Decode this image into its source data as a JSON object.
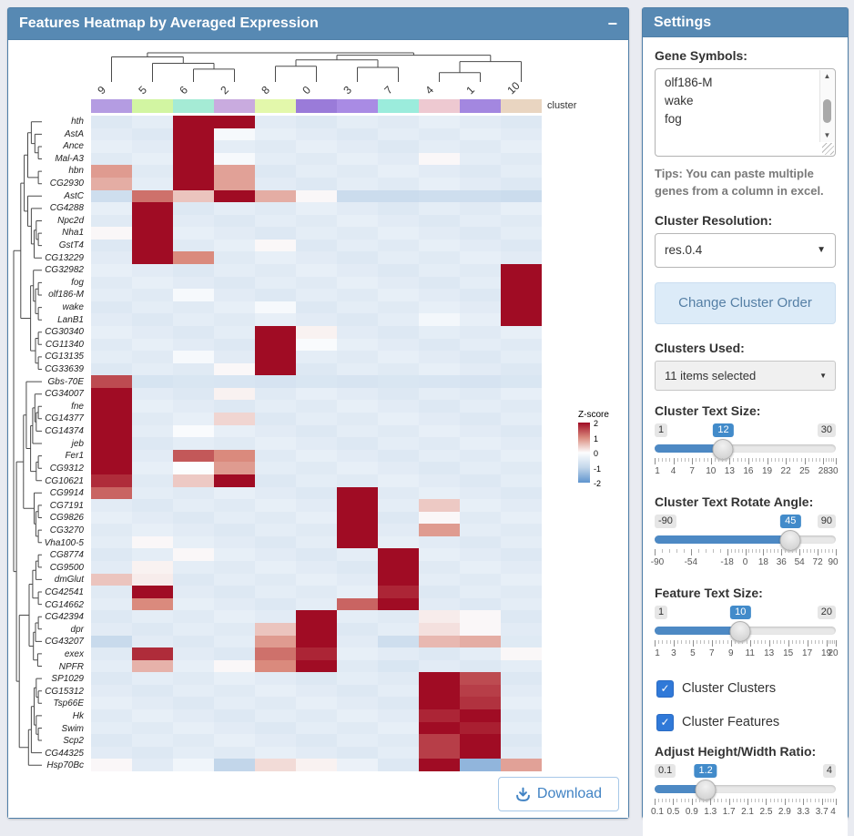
{
  "heatmap_card": {
    "title": "Features Heatmap by Averaged Expression",
    "collapse_icon": "−",
    "annotation_label": "cluster",
    "legend": {
      "title": "Z-score",
      "ticks": [
        "2",
        "1",
        "0",
        "-1",
        "-2"
      ]
    },
    "download_label": "Download"
  },
  "chart_data": {
    "type": "heatmap",
    "title": "Features Heatmap by Averaged Expression",
    "legend_title": "Z-score",
    "zlim": [
      -2,
      2
    ],
    "default_z": -0.45,
    "columns": [
      "9",
      "5",
      "6",
      "2",
      "8",
      "0",
      "3",
      "7",
      "4",
      "1",
      "10"
    ],
    "column_colors": [
      "#b49ce2",
      "#d2f5a2",
      "#a5ebd5",
      "#c9abdf",
      "#e3f8ab",
      "#9a7bd9",
      "#a98be4",
      "#9becdc",
      "#eec9d1",
      "#a387e0",
      "#e9d5c1"
    ],
    "rows": [
      "hth",
      "AstA",
      "Ance",
      "Mal-A3",
      "hbn",
      "CG2930",
      "AstC",
      "CG4288",
      "Npc2d",
      "Nha1",
      "GstT4",
      "CG13229",
      "CG32982",
      "fog",
      "olf186-M",
      "wake",
      "LanB1",
      "CG30340",
      "CG11340",
      "CG13135",
      "CG33639",
      "Gbs-70E",
      "CG34007",
      "fne",
      "CG14377",
      "CG14374",
      "jeb",
      "Fer1",
      "CG9312",
      "CG10621",
      "CG9914",
      "CG7191",
      "CG9826",
      "CG3270",
      "Vha100-5",
      "CG8774",
      "CG9500",
      "dmGlut",
      "CG42541",
      "CG14662",
      "CG42394",
      "dpr",
      "CG43207",
      "exex",
      "NPFR",
      "SP1029",
      "CG15312",
      "Tsp66E",
      "Hk",
      "Swim",
      "Scp2",
      "CG44325",
      "Hsp70Bc"
    ],
    "cells": {
      "hth": {
        "6": 2,
        "2": 2
      },
      "AstA": {
        "6": 2,
        "2": -0.1
      },
      "Ance": {
        "6": 2
      },
      "Mal-A3": {
        "6": 2,
        "2": -0.1,
        "4": 0.05
      },
      "hbn": {
        "9": 0.85,
        "6": 2,
        "2": 0.8
      },
      "CG2930": {
        "9": 0.7,
        "6": 2,
        "2": 0.8
      },
      "AstC": {
        "9": -0.8,
        "5": 1.2,
        "6": 0.5,
        "2": 2,
        "8": 0.7,
        "0": 0.05,
        "3": -0.85,
        "7": -0.85,
        "4": -0.8,
        "1": -0.8,
        "10": -0.85
      },
      "CG4288": {
        "5": 2
      },
      "Npc2d": {
        "5": 2
      },
      "Nha1": {
        "5": 2,
        "9": 0.05
      },
      "GstT4": {
        "5": 2,
        "8": 0.05
      },
      "CG13229": {
        "5": 2,
        "6": 1.0
      },
      "CG32982": {
        "10": 2
      },
      "fog": {
        "10": 2
      },
      "olf186-M": {
        "10": 2,
        "6": -0.1
      },
      "wake": {
        "10": 2,
        "8": -0.1
      },
      "LanB1": {
        "10": 2,
        "4": -0.15
      },
      "CG30340": {
        "8": 2,
        "0": 0.1
      },
      "CG11340": {
        "8": 2,
        "0": -0.05
      },
      "CG13135": {
        "8": 2,
        "6": -0.1
      },
      "CG33639": {
        "8": 2,
        "2": 0.05
      },
      "Gbs-70E": {
        "9": 1.5,
        "5": -0.65,
        "6": -0.6,
        "2": -0.62,
        "8": -0.66,
        "0": -0.6,
        "3": -0.64,
        "7": -0.6,
        "4": -0.62,
        "1": -0.66,
        "10": -0.6
      },
      "CG34007": {
        "9": 2,
        "2": 0.1
      },
      "fne": {
        "9": 2
      },
      "CG14377": {
        "9": 2,
        "2": 0.35
      },
      "CG14374": {
        "9": 2,
        "6": -0.05
      },
      "jeb": {
        "9": 2
      },
      "Fer1": {
        "9": 2,
        "6": 1.4,
        "2": 1.0
      },
      "CG9312": {
        "9": 2,
        "6": 0,
        "2": 0.85
      },
      "CG10621": {
        "9": 1.75,
        "6": 0.45,
        "2": 2
      },
      "CG9914": {
        "9": 1.3,
        "3": 2
      },
      "CG7191": {
        "3": 2,
        "4": 0.45
      },
      "CG9826": {
        "3": 2,
        "4": 0.05
      },
      "CG3270": {
        "3": 2,
        "4": 0.85
      },
      "Vha100-5": {
        "3": 2,
        "5": 0.05
      },
      "CG8774": {
        "7": 2,
        "6": 0.05
      },
      "CG9500": {
        "7": 2,
        "5": 0.1
      },
      "dmGlut": {
        "7": 2,
        "9": 0.5,
        "5": 0.15
      },
      "CG42541": {
        "5": 2,
        "7": 1.8
      },
      "CG14662": {
        "5": 1.0,
        "3": 1.3,
        "7": 2
      },
      "CG42394": {
        "0": 2,
        "4": 0.15,
        "1": 0.05
      },
      "dpr": {
        "0": 2,
        "8": 0.5,
        "4": 0.25,
        "1": 0.05
      },
      "CG43207": {
        "0": 2,
        "9": -0.9,
        "8": 0.85,
        "7": -0.8,
        "4": 0.6,
        "1": 0.7,
        "10": -0.5
      },
      "exex": {
        "5": 1.75,
        "8": 1.2,
        "0": 1.8,
        "10": 0.05
      },
      "NPFR": {
        "5": 0.65,
        "2": 0.05,
        "8": 1.0,
        "0": 2,
        "7": -0.6
      },
      "SP1029": {
        "4": 2,
        "1": 1.5
      },
      "CG15312": {
        "4": 2,
        "1": 1.6
      },
      "Tsp66E": {
        "4": 2,
        "1": 1.7
      },
      "Hk": {
        "4": 1.8,
        "1": 2
      },
      "Swim": {
        "4": 2,
        "1": 1.85
      },
      "Scp2": {
        "4": 1.6,
        "1": 2
      },
      "CG44325": {
        "4": 1.6,
        "1": 2
      },
      "Hsp70Bc": {
        "9": 0.05,
        "6": -0.2,
        "2": -1.0,
        "8": 0.3,
        "0": 0.1,
        "3": -0.3,
        "4": 2,
        "1": -1.5,
        "10": 0.8
      }
    },
    "col_dendrogram": {
      "h": 10,
      "c": [
        {
          "h": 8.6,
          "c": [
            0,
            {
              "h": 6.4,
              "c": [
                1,
                {
                  "h": 4.4,
                  "c": [
                    2,
                    3
                  ]
                }
              ]
            }
          ]
        },
        {
          "h": 9.2,
          "c": [
            {
              "h": 7.6,
              "c": [
                {
                  "h": 5.4,
                  "c": [
                    4,
                    5
                  ]
                },
                {
                  "h": 5.0,
                  "c": [
                    6,
                    7
                  ]
                }
              ]
            },
            {
              "h": 7.0,
              "c": [
                {
                  "h": 3.2,
                  "c": [
                    8,
                    9
                  ]
                },
                10
              ]
            }
          ]
        }
      ]
    },
    "row_dendrogram": {
      "h": 8,
      "c": [
        {
          "h": 6,
          "c": [
            {
              "h": 5,
              "c": [
                {
                  "h": 4,
                  "c": [
                    {
                      "h": 3,
                      "c": [
                        0,
                        {
                          "h": 2,
                          "c": [
                            1,
                            {
                              "h": 1,
                              "c": [
                                2,
                                3
                              ]
                            }
                          ]
                        }
                      ]
                    },
                    {
                      "h": 1,
                      "c": [
                        4,
                        5
                      ]
                    }
                  ]
                },
                {
                  "h": 4,
                  "c": [
                    6,
                    {
                      "h": 3,
                      "c": [
                        7,
                        {
                          "h": 2.2,
                          "c": [
                            {
                              "h": 1.6,
                              "c": [
                                8,
                                {
                                  "h": 1,
                                  "c": [
                                    9,
                                    10
                                  ]
                                }
                              ]
                            },
                            11
                          ]
                        }
                      ]
                    }
                  ]
                }
              ]
            },
            {
              "h": 3.2,
              "c": [
                {
                  "h": 2.4,
                  "c": [
                    12,
                    {
                      "h": 1.8,
                      "c": [
                        {
                          "h": 1,
                          "c": [
                            13,
                            14
                          ]
                        },
                        {
                          "h": 1,
                          "c": [
                            15,
                            16
                          ]
                        }
                      ]
                    }
                  ]
                },
                {
                  "h": 1.8,
                  "c": [
                    {
                      "h": 1,
                      "c": [
                        17,
                        18
                      ]
                    },
                    {
                      "h": 1,
                      "c": [
                        19,
                        20
                      ]
                    }
                  ]
                }
              ]
            }
          ]
        },
        {
          "h": 7.2,
          "c": [
            {
              "h": 5.2,
              "c": [
                {
                  "h": 4.4,
                  "c": [
                    21,
                    {
                      "h": 3.2,
                      "c": [
                        {
                          "h": 2.6,
                          "c": [
                            {
                              "h": 2,
                              "c": [
                                22,
                                {
                                  "h": 1.6,
                                  "c": [
                                    {
                                      "h": 1,
                                      "c": [
                                        23,
                                        24
                                      ]
                                    },
                                    25
                                  ]
                                }
                              ]
                            },
                            26
                          ]
                        },
                        {
                          "h": 1.6,
                          "c": [
                            {
                              "h": 1,
                              "c": [
                                27,
                                28
                              ]
                            },
                            29
                          ]
                        }
                      ]
                    }
                  ]
                },
                {
                  "h": 2.2,
                  "c": [
                    30,
                    {
                      "h": 1.7,
                      "c": [
                        {
                          "h": 1,
                          "c": [
                            31,
                            32
                          ]
                        },
                        {
                          "h": 1,
                          "c": [
                            33,
                            34
                          ]
                        }
                      ]
                    }
                  ]
                }
              ]
            },
            {
              "h": 6.4,
              "c": [
                {
                  "h": 3.6,
                  "c": [
                    {
                      "h": 2.6,
                      "c": [
                        {
                          "h": 1.7,
                          "c": [
                            {
                              "h": 1,
                              "c": [
                                35,
                                36
                              ]
                            },
                            37
                          ]
                        },
                        {
                          "h": 1,
                          "c": [
                            38,
                            39
                          ]
                        }
                      ]
                    },
                    {
                      "h": 2.4,
                      "c": [
                        {
                          "h": 1.8,
                          "c": [
                            {
                              "h": 1,
                              "c": [
                                40,
                                41
                              ]
                            },
                            42
                          ]
                        },
                        {
                          "h": 1.2,
                          "c": [
                            43,
                            44
                          ]
                        }
                      ]
                    }
                  ]
                },
                {
                  "h": 3.8,
                  "c": [
                    {
                      "h": 3,
                      "c": [
                        {
                          "h": 2.2,
                          "c": [
                            {
                              "h": 1.6,
                              "c": [
                                45,
                                {
                                  "h": 1,
                                  "c": [
                                    46,
                                    47
                                  ]
                                }
                              ]
                            },
                            {
                              "h": 1.6,
                              "c": [
                                48,
                                {
                                  "h": 1,
                                  "c": [
                                    49,
                                    50
                                  ]
                                }
                              ]
                            }
                          ]
                        },
                        51
                      ]
                    },
                    52
                  ]
                }
              ]
            }
          ]
        }
      ]
    }
  },
  "settings": {
    "title": "Settings",
    "gene_symbols": {
      "label": "Gene Symbols:",
      "value": "olf186-M\nwake\nfog"
    },
    "tips": "Tips: You can paste multiple genes from a column in excel.",
    "cluster_resolution": {
      "label": "Cluster Resolution:",
      "value": "res.0.4"
    },
    "change_cluster_order": "Change Cluster Order",
    "clusters_used": {
      "label": "Clusters Used:",
      "value": "11 items selected"
    },
    "sliders": [
      {
        "id": "cluster-text-size",
        "label": "Cluster Text Size:",
        "min": 1,
        "max": 30,
        "value": 12,
        "ticks": [
          1,
          4,
          7,
          10,
          13,
          16,
          19,
          22,
          25,
          28,
          30
        ]
      },
      {
        "id": "cluster-text-rotate-angle",
        "label": "Cluster Text Rotate Angle:",
        "min": -90,
        "max": 90,
        "value": 45,
        "ticks": [
          -90,
          -54,
          -18,
          0,
          18,
          36,
          54,
          72,
          90
        ]
      },
      {
        "id": "feature-text-size",
        "label": "Feature Text Size:",
        "min": 1,
        "max": 20,
        "value": 10,
        "ticks": [
          1,
          3,
          5,
          7,
          9,
          11,
          13,
          15,
          17,
          19,
          20
        ]
      },
      {
        "id": "adjust-height-width-ratio",
        "label": "Adjust Height/Width Ratio:",
        "min": 0.1,
        "max": 4,
        "value": 1.2,
        "ticks": [
          0.1,
          0.5,
          0.9,
          1.3,
          1.7,
          2.1,
          2.5,
          2.9,
          3.3,
          3.7,
          4
        ]
      }
    ],
    "checkboxes": [
      {
        "label": "Cluster Clusters",
        "checked": true
      },
      {
        "label": "Cluster Features",
        "checked": true
      }
    ]
  }
}
